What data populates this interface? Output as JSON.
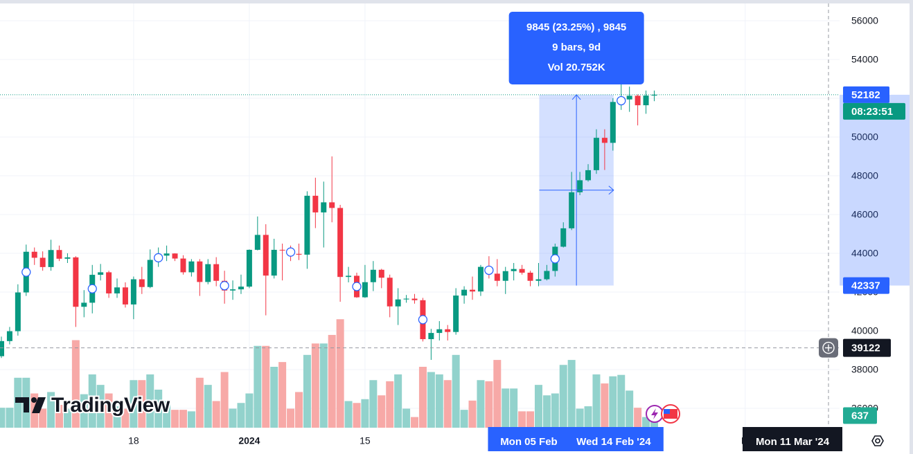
{
  "chart_data": {
    "type": "candlestick",
    "watermark": "TradingView",
    "categories": [
      null,
      null,
      null,
      null,
      null,
      null,
      null,
      null,
      null,
      null,
      null,
      null,
      null,
      null,
      null,
      null,
      "18",
      null,
      null,
      null,
      null,
      null,
      null,
      null,
      null,
      null,
      null,
      null,
      null,
      null,
      "2024",
      null,
      null,
      null,
      null,
      null,
      null,
      null,
      null,
      null,
      null,
      null,
      null,
      null,
      "15",
      null,
      null,
      null,
      null,
      null,
      null,
      null,
      null,
      null,
      null,
      null,
      null,
      null,
      null,
      null,
      null,
      null,
      null,
      null,
      null,
      null,
      null,
      null,
      null,
      null,
      null,
      null,
      null,
      null,
      null,
      null,
      null,
      null,
      null,
      null,
      null,
      null,
      null,
      null,
      null,
      null,
      null,
      null,
      null,
      null,
      "M",
      null,
      null,
      null,
      null,
      null,
      null,
      null,
      null,
      null,
      null
    ],
    "open": [
      38690,
      39470,
      39980,
      41980,
      44080,
      43770,
      43290,
      44170,
      43720,
      43790,
      41240,
      41450,
      42890,
      43020,
      41930,
      42240,
      41360,
      42660,
      42260,
      43660,
      43880,
      43990,
      43730,
      43020,
      43580,
      42520,
      43440,
      42580,
      42080,
      42140,
      42280,
      44180,
      44950,
      42850,
      44180,
      44160,
      43970,
      43930,
      46970,
      46110,
      46630,
      46340,
      42780,
      42840,
      41730,
      42510,
      43150,
      42740,
      41260,
      41620,
      41660,
      41580,
      39570,
      39890,
      40080,
      39940,
      41820,
      42120,
      42030,
      43300,
      42950,
      42580,
      43080,
      43190,
      43000,
      42580,
      42660,
      43090,
      44340,
      45290,
      47150,
      47770,
      48290,
      49960,
      49700,
      51810,
      51940,
      52130,
      51640,
      52140,
      null,
      null,
      null,
      null,
      null,
      null,
      null,
      null,
      null,
      null,
      null,
      null,
      null,
      null,
      null,
      null,
      null,
      null,
      null,
      null,
      null
    ],
    "high": [
      39700,
      40200,
      42400,
      44450,
      44300,
      44100,
      44700,
      44400,
      44000,
      43850,
      42100,
      43400,
      43450,
      43100,
      42700,
      42500,
      42800,
      43300,
      44200,
      44300,
      44400,
      44000,
      43900,
      43700,
      43700,
      43700,
      43800,
      43100,
      42600,
      42900,
      44200,
      45900,
      45500,
      44750,
      44500,
      44400,
      44500,
      47200,
      47900,
      47700,
      49000,
      46500,
      43300,
      43000,
      43400,
      43600,
      43200,
      42900,
      42200,
      41850,
      41900,
      41700,
      40100,
      40500,
      40300,
      42200,
      42300,
      42800,
      43400,
      43850,
      43700,
      43300,
      43500,
      43400,
      43100,
      43500,
      43400,
      44500,
      45600,
      48200,
      48200,
      48600,
      50400,
      50400,
      52000,
      52800,
      52600,
      52200,
      52400,
      52400,
      null,
      null,
      null,
      null,
      null,
      null,
      null,
      null,
      null,
      null,
      null,
      null,
      null,
      null,
      null,
      null,
      null,
      null,
      null,
      null,
      null
    ],
    "low": [
      38600,
      39300,
      39750,
      41800,
      43400,
      43100,
      43100,
      43600,
      43500,
      40200,
      40700,
      40900,
      42600,
      41700,
      41700,
      41200,
      40600,
      41900,
      42200,
      43300,
      43600,
      43600,
      42900,
      42800,
      41800,
      42400,
      42300,
      41400,
      41600,
      41900,
      42200,
      44150,
      40800,
      42700,
      42600,
      43600,
      43650,
      43200,
      45300,
      44300,
      45600,
      41500,
      42500,
      41700,
      41700,
      42050,
      42200,
      40700,
      40300,
      41450,
      41400,
      39450,
      38500,
      39500,
      39500,
      39800,
      41400,
      41600,
      41800,
      42700,
      42300,
      41900,
      42600,
      42900,
      42300,
      42300,
      42600,
      42800,
      44300,
      45200,
      47000,
      47700,
      48100,
      48300,
      49300,
      51400,
      51300,
      50600,
      51200,
      51850,
      null,
      null,
      null,
      null,
      null,
      null,
      null,
      null,
      null,
      null,
      null,
      null,
      null,
      null,
      null,
      null,
      null,
      null,
      null,
      null,
      null
    ],
    "close": [
      39470,
      39980,
      41980,
      44080,
      43770,
      43290,
      44170,
      43720,
      43790,
      41240,
      41450,
      42890,
      43020,
      41930,
      42240,
      41360,
      42660,
      42260,
      43660,
      43880,
      43990,
      43730,
      43020,
      43580,
      42520,
      43440,
      42580,
      42080,
      42140,
      42280,
      44180,
      44950,
      42850,
      44180,
      44160,
      43970,
      43930,
      46970,
      46110,
      46630,
      46340,
      42780,
      42840,
      41730,
      42510,
      43150,
      42740,
      41260,
      41620,
      41660,
      41580,
      39570,
      39890,
      40080,
      39940,
      41820,
      42120,
      42030,
      43300,
      42950,
      42580,
      43080,
      43190,
      43000,
      42580,
      42660,
      43090,
      44340,
      45290,
      47150,
      47770,
      48290,
      49960,
      49700,
      51810,
      51940,
      52130,
      51640,
      52140,
      52182,
      null,
      null,
      null,
      null,
      null,
      null,
      null,
      null,
      null,
      null,
      null,
      null,
      null,
      null,
      null,
      null,
      null,
      null,
      null,
      null,
      null
    ],
    "volume": [
      1050,
      1050,
      2625,
      2625,
      1800,
      1000,
      1875,
      1200,
      1000,
      4600,
      1760,
      2800,
      2250,
      1800,
      1125,
      1000,
      2500,
      2500,
      2800,
      2000,
      1400,
      940,
      940,
      860,
      2625,
      2250,
      1400,
      2925,
      1000,
      1300,
      1800,
      4300,
      4300,
      3200,
      3450,
      1000,
      1875,
      3825,
      4425,
      4425,
      4875,
      5700,
      1400,
      1300,
      1500,
      2500,
      1700,
      2440,
      2800,
      1000,
      560,
      3200,
      2925,
      2800,
      2500,
      3825,
      940,
      1425,
      2500,
      2440,
      3560,
      2060,
      2060,
      860,
      860,
      2250,
      1700,
      1800,
      3300,
      3560,
      1000,
      1125,
      2800,
      2325,
      2700,
      2775,
      1950,
      1050,
      560,
      637,
      null,
      null,
      null,
      null,
      null,
      null,
      null,
      null,
      null,
      null,
      null,
      null,
      null,
      null,
      null,
      null,
      null,
      null,
      null,
      null,
      null
    ],
    "up_color": "#089981",
    "down_color": "#f23645",
    "volume_up_color": "#92d2cc",
    "volume_down_color": "#f7a9a7",
    "ylim": [
      35000,
      57000
    ],
    "yticks": [
      36000,
      38000,
      40000,
      42000,
      44000,
      46000,
      48000,
      50000,
      52000,
      54000,
      56000
    ],
    "volume_ylim": [
      0,
      6000
    ],
    "grid": true,
    "countdown": "08:23:51",
    "measure": {
      "start_label": "Mon 05 Feb",
      "end_label": "Wed 14 Feb '24",
      "start_price": 42337,
      "change_label": "9845 (23.25%) , 9845",
      "bars_label": "9 bars, 9d",
      "volume_label": "Vol 20.752K"
    },
    "crosshair": {
      "x_label": "Mon 11 Mar '24",
      "price": 39122
    }
  }
}
